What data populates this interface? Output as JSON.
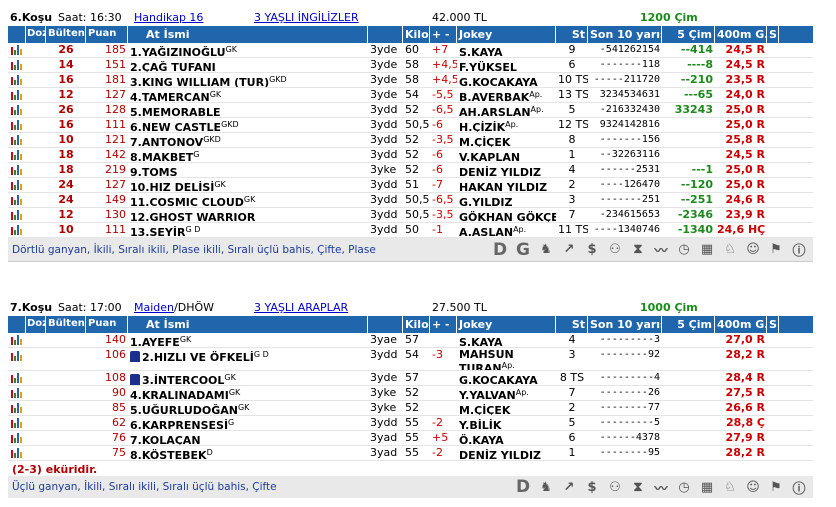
{
  "race1": {
    "kosu": "6.Koşu",
    "saat": "Saat: 16:30",
    "tur": "Handikap  16",
    "grup": "3 YAŞLI İNGİLİZLER",
    "ikramiye": "42.000 TL",
    "mesafe": "1200 Çim",
    "headers": [
      "Dozaj",
      "Bülten",
      "Puan",
      "At İsmi",
      "Kilo",
      "+ -",
      "Jokey",
      "St",
      "Son 10 yarışı",
      "5 Çim",
      "400m G.",
      "S"
    ],
    "rows": [
      {
        "bulten": "26",
        "puan": "185",
        "at": "1.YAĞIZINOĞLU",
        "sup": "GK",
        "yas": "3yde",
        "kilo": "60",
        "fark": "+7",
        "jokey": "S.KAYA",
        "jsup": "",
        "st": "9",
        "son10": "-541262154",
        "cim": "--414",
        "g400": "24,5 R"
      },
      {
        "bulten": "14",
        "puan": "151",
        "at": "2.ÇAĞ TUFANI",
        "sup": "",
        "yas": "3yde",
        "kilo": "58",
        "fark": "+4,5",
        "jokey": "F.YÜKSEL",
        "jsup": "",
        "st": "6",
        "son10": "-------118",
        "cim": "----8",
        "g400": "24,5 R"
      },
      {
        "bulten": "16",
        "puan": "181",
        "at": "3.KING WILLIAM (TUR)",
        "sup": "GKD",
        "yas": "3yde",
        "kilo": "58",
        "fark": "+4,5",
        "jokey": "G.KOCAKAYA",
        "jsup": "",
        "st": "10 TS",
        "son10": "-----211720",
        "cim": "--210",
        "g400": "23,5 R"
      },
      {
        "bulten": "12",
        "puan": "127",
        "at": "4.TAMERCAN",
        "sup": "GK",
        "yas": "3yde",
        "kilo": "54",
        "fark": "-5,5",
        "jokey": "B.AVERBAK",
        "jsup": "Ap.",
        "st": "13 TS",
        "son10": "3234534631",
        "cim": "---65",
        "g400": "24,0 R"
      },
      {
        "bulten": "26",
        "puan": "128",
        "at": "5.MEMORABLE",
        "sup": "",
        "yas": "3ydd",
        "kilo": "52",
        "fark": "-6,5",
        "jokey": "AH.ARSLAN",
        "jsup": "Ap.",
        "st": "5",
        "son10": "-216332430",
        "cim": "33243",
        "g400": "25,0 R"
      },
      {
        "bulten": "16",
        "puan": "111",
        "at": "6.NEW CASTLE",
        "sup": "GKD",
        "yas": "3ydd",
        "kilo": "50,5",
        "fark": "-6",
        "jokey": "H.ÇİZİK",
        "jsup": "Ap.",
        "st": "12 TS",
        "son10": "9324142816",
        "cim": "",
        "g400": "25,0 R"
      },
      {
        "bulten": "10",
        "puan": "121",
        "at": "7.ANTONOV",
        "sup": "GKD",
        "yas": "3ydd",
        "kilo": "52",
        "fark": "-3,5",
        "jokey": "M.ÇİÇEK",
        "jsup": "",
        "st": "8",
        "son10": "-------156",
        "cim": "",
        "g400": "25,8 R"
      },
      {
        "bulten": "18",
        "puan": "142",
        "at": "8.MAKBET",
        "sup": "G",
        "yas": "3ydd",
        "kilo": "52",
        "fark": "-6",
        "jokey": "V.KAPLAN",
        "jsup": "",
        "st": "1",
        "son10": "--32263116",
        "cim": "",
        "g400": "24,5 R"
      },
      {
        "bulten": "18",
        "puan": "219",
        "at": "9.TOMS",
        "sup": "",
        "yas": "3yke",
        "kilo": "52",
        "fark": "-6",
        "jokey": "DENİZ YILDIZ",
        "jsup": "",
        "st": "4",
        "son10": "------2531",
        "cim": "---1",
        "g400": "25,0 R"
      },
      {
        "bulten": "24",
        "puan": "127",
        "at": "10.HIZ DELİSİ",
        "sup": "GK",
        "yas": "3ydd",
        "kilo": "51",
        "fark": "-7",
        "jokey": "HAKAN YILDIZ",
        "jsup": "",
        "st": "2",
        "son10": "----126470",
        "cim": "--120",
        "g400": "25,0 R"
      },
      {
        "bulten": "24",
        "puan": "149",
        "at": "11.COSMIC CLOUD",
        "sup": "GK",
        "yas": "3ydd",
        "kilo": "50,5",
        "fark": "-6,5",
        "jokey": "G.YILDIZ",
        "jsup": "",
        "st": "3",
        "son10": "-------251",
        "cim": "--251",
        "g400": "24,6 R"
      },
      {
        "bulten": "12",
        "puan": "130",
        "at": "12.GHOST WARRIOR",
        "sup": "",
        "yas": "3ydd",
        "kilo": "50,5",
        "fark": "-3,5",
        "jokey": "GÖKHAN GÖKÇE",
        "jsup": "",
        "st": "7",
        "son10": "-234615653",
        "cim": "-2346",
        "g400": "23,9 R"
      },
      {
        "bulten": "10",
        "puan": "111",
        "at": "13.SEYİR",
        "sup": "G D",
        "yas": "3ydd",
        "kilo": "50",
        "fark": "-1",
        "jokey": "A.ASLAN",
        "jsup": "Ap.",
        "st": "11 TS",
        "son10": "----1340746",
        "cim": "-1340",
        "g400": "24,6 HÇ"
      }
    ],
    "bahis": "Dörtlü ganyan, İkili, Sıralı ikili, Plase ikili, Sıralı üçlü bahis, Çifte, Plase"
  },
  "race2": {
    "kosu": "7.Koşu",
    "saat": "Saat: 17:00",
    "tur": "Maiden",
    "dhow": "/DHÖW",
    "grup": "3 YAŞLI ARAPLAR",
    "ikramiye": "27.500 TL",
    "mesafe": "1000 Çim",
    "headers": [
      "Dozaj",
      "Bülten",
      "Puan",
      "At İsmi",
      "Kilo",
      "+ -",
      "Jokey",
      "St",
      "Son 10 yarışı",
      "5 Çim",
      "400m G.",
      "S"
    ],
    "rows": [
      {
        "puan": "140",
        "at": "1.AYEFE",
        "sup": "GK",
        "yas": "3yae",
        "kilo": "57",
        "fark": "",
        "jokey": "S.KAYA",
        "jsup": "",
        "st": "4",
        "son10": "---------3",
        "cim": "",
        "g400": "27,0 R",
        "tall": false,
        "jersey": false
      },
      {
        "puan": "106",
        "at": "2.HIZLI VE ÖFKELİ",
        "sup": "G D",
        "yas": "3ydd",
        "kilo": "54",
        "fark": "-3",
        "jokey": "MAHSUN TURAN",
        "jsup": "Ap.",
        "st": "3",
        "son10": "--------92",
        "cim": "",
        "g400": "28,2 R",
        "tall": true,
        "jersey": true
      },
      {
        "puan": "108",
        "at": "3.İNTERCOOL",
        "sup": "GK",
        "yas": "3yde",
        "kilo": "57",
        "fark": "",
        "jokey": "G.KOCAKAYA",
        "jsup": "",
        "st": "8 TS",
        "son10": "---------4",
        "cim": "",
        "g400": "28,4 R",
        "tall": false,
        "jersey": true
      },
      {
        "puan": "90",
        "at": "4.KRALINADAMI",
        "sup": "GK",
        "yas": "3yke",
        "kilo": "52",
        "fark": "",
        "jokey": "Y.YALVAN",
        "jsup": "Ap.",
        "st": "7",
        "son10": "--------26",
        "cim": "",
        "g400": "27,5 R",
        "tall": false,
        "jersey": false
      },
      {
        "puan": "85",
        "at": "5.UĞURLUDOĞAN",
        "sup": "GK",
        "yas": "3yke",
        "kilo": "52",
        "fark": "",
        "jokey": "M.ÇİÇEK",
        "jsup": "",
        "st": "2",
        "son10": "--------77",
        "cim": "",
        "g400": "26,6 R",
        "tall": false,
        "jersey": false
      },
      {
        "puan": "62",
        "at": "6.KARPRENSESİ",
        "sup": "G",
        "yas": "3ydd",
        "kilo": "55",
        "fark": "-2",
        "jokey": "Y.BİLİK",
        "jsup": "",
        "st": "5",
        "son10": "---------5",
        "cim": "",
        "g400": "28,8 Ç",
        "tall": false,
        "jersey": false
      },
      {
        "puan": "76",
        "at": "7.KOLAÇAN",
        "sup": "",
        "yas": "3yad",
        "kilo": "55",
        "fark": "+5",
        "jokey": "Ö.KAYA",
        "jsup": "",
        "st": "6",
        "son10": "------4378",
        "cim": "",
        "g400": "27,9 R",
        "tall": false,
        "jersey": false
      },
      {
        "puan": "75",
        "at": "8.KÖSTEBEK",
        "sup": "D",
        "yas": "3yad",
        "kilo": "55",
        "fark": "-2",
        "jokey": "DENİZ YILDIZ",
        "jsup": "",
        "st": "1",
        "son10": "--------95",
        "cim": "",
        "g400": "28,2 R",
        "tall": false,
        "jersey": false
      }
    ],
    "ekurilik": "(2-3) eküridir.",
    "bahis": "Üçlü ganyan, İkili, Sıralı ikili, Sıralı üçlü bahis, Çifte"
  },
  "icons1": [
    "D",
    "G",
    "horse-icon",
    "trend-icon",
    "dollar-icon",
    "binoculars-icon",
    "hourglass-icon",
    "line-chart-icon",
    "stopwatch-icon",
    "calculator-icon",
    "horse-head-icon",
    "people-icon",
    "flag-icon",
    "info-icon"
  ],
  "colors": {
    "header": "#1f66ad",
    "red": "#b10000",
    "green": "#1a8a1a",
    "link": "#0000cc"
  }
}
